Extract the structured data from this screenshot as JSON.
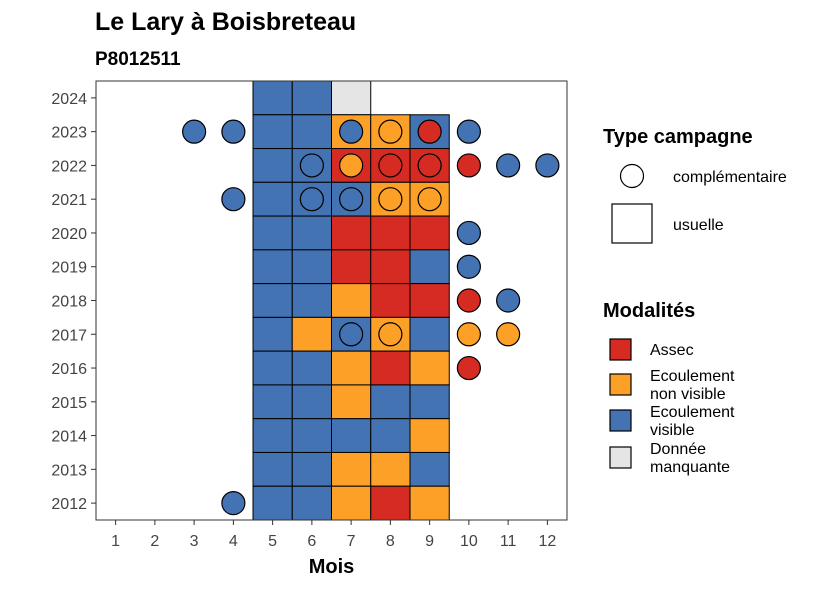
{
  "chart_data": {
    "type": "heatmap",
    "title": "Le Lary à Boisbreteau",
    "subtitle": "P8012511",
    "xlabel": "Mois",
    "ylabel": "",
    "x_ticks": [
      1,
      2,
      3,
      4,
      5,
      6,
      7,
      8,
      9,
      10,
      11,
      12
    ],
    "y_ticks": [
      2012,
      2013,
      2014,
      2015,
      2016,
      2017,
      2018,
      2019,
      2020,
      2021,
      2022,
      2023,
      2024
    ],
    "xlim": [
      0.5,
      12.5
    ],
    "ylim": [
      2011.5,
      2024.5
    ],
    "colors": {
      "Assec": "#d52b23",
      "Ecoulement non visible": "#fda028",
      "Ecoulement visible": "#4373b2",
      "Donnée manquante": "#e5e5e5"
    },
    "legend_type": {
      "title": "Type campagne",
      "items": [
        {
          "shape": "circle",
          "label": "complémentaire"
        },
        {
          "shape": "square",
          "label": "usuelle"
        }
      ]
    },
    "legend_modalites": {
      "title": "Modalités",
      "items": [
        {
          "key": "Assec",
          "lines": [
            "Assec"
          ]
        },
        {
          "key": "Ecoulement non visible",
          "lines": [
            "Ecoulement",
            "non visible"
          ]
        },
        {
          "key": "Ecoulement visible",
          "lines": [
            "Ecoulement",
            "visible"
          ]
        },
        {
          "key": "Donnée manquante",
          "lines": [
            "Donnée",
            "manquante"
          ]
        }
      ]
    },
    "usuelle": [
      {
        "year": 2024,
        "month": 5,
        "status": "Ecoulement visible"
      },
      {
        "year": 2024,
        "month": 6,
        "status": "Ecoulement visible"
      },
      {
        "year": 2024,
        "month": 7,
        "status": "Donnée manquante"
      },
      {
        "year": 2023,
        "month": 5,
        "status": "Ecoulement visible"
      },
      {
        "year": 2023,
        "month": 6,
        "status": "Ecoulement visible"
      },
      {
        "year": 2023,
        "month": 7,
        "status": "Ecoulement non visible"
      },
      {
        "year": 2023,
        "month": 8,
        "status": "Ecoulement non visible"
      },
      {
        "year": 2023,
        "month": 9,
        "status": "Ecoulement visible"
      },
      {
        "year": 2022,
        "month": 5,
        "status": "Ecoulement visible"
      },
      {
        "year": 2022,
        "month": 6,
        "status": "Ecoulement visible"
      },
      {
        "year": 2022,
        "month": 7,
        "status": "Assec"
      },
      {
        "year": 2022,
        "month": 8,
        "status": "Assec"
      },
      {
        "year": 2022,
        "month": 9,
        "status": "Assec"
      },
      {
        "year": 2021,
        "month": 5,
        "status": "Ecoulement visible"
      },
      {
        "year": 2021,
        "month": 6,
        "status": "Ecoulement visible"
      },
      {
        "year": 2021,
        "month": 7,
        "status": "Ecoulement visible"
      },
      {
        "year": 2021,
        "month": 8,
        "status": "Ecoulement non visible"
      },
      {
        "year": 2021,
        "month": 9,
        "status": "Ecoulement non visible"
      },
      {
        "year": 2020,
        "month": 5,
        "status": "Ecoulement visible"
      },
      {
        "year": 2020,
        "month": 6,
        "status": "Ecoulement visible"
      },
      {
        "year": 2020,
        "month": 7,
        "status": "Assec"
      },
      {
        "year": 2020,
        "month": 8,
        "status": "Assec"
      },
      {
        "year": 2020,
        "month": 9,
        "status": "Assec"
      },
      {
        "year": 2019,
        "month": 5,
        "status": "Ecoulement visible"
      },
      {
        "year": 2019,
        "month": 6,
        "status": "Ecoulement visible"
      },
      {
        "year": 2019,
        "month": 7,
        "status": "Assec"
      },
      {
        "year": 2019,
        "month": 8,
        "status": "Assec"
      },
      {
        "year": 2019,
        "month": 9,
        "status": "Ecoulement visible"
      },
      {
        "year": 2018,
        "month": 5,
        "status": "Ecoulement visible"
      },
      {
        "year": 2018,
        "month": 6,
        "status": "Ecoulement visible"
      },
      {
        "year": 2018,
        "month": 7,
        "status": "Ecoulement non visible"
      },
      {
        "year": 2018,
        "month": 8,
        "status": "Assec"
      },
      {
        "year": 2018,
        "month": 9,
        "status": "Assec"
      },
      {
        "year": 2017,
        "month": 5,
        "status": "Ecoulement visible"
      },
      {
        "year": 2017,
        "month": 6,
        "status": "Ecoulement non visible"
      },
      {
        "year": 2017,
        "month": 7,
        "status": "Ecoulement visible"
      },
      {
        "year": 2017,
        "month": 8,
        "status": "Ecoulement non visible"
      },
      {
        "year": 2017,
        "month": 9,
        "status": "Ecoulement visible"
      },
      {
        "year": 2016,
        "month": 5,
        "status": "Ecoulement visible"
      },
      {
        "year": 2016,
        "month": 6,
        "status": "Ecoulement visible"
      },
      {
        "year": 2016,
        "month": 7,
        "status": "Ecoulement non visible"
      },
      {
        "year": 2016,
        "month": 8,
        "status": "Assec"
      },
      {
        "year": 2016,
        "month": 9,
        "status": "Ecoulement non visible"
      },
      {
        "year": 2015,
        "month": 5,
        "status": "Ecoulement visible"
      },
      {
        "year": 2015,
        "month": 6,
        "status": "Ecoulement visible"
      },
      {
        "year": 2015,
        "month": 7,
        "status": "Ecoulement non visible"
      },
      {
        "year": 2015,
        "month": 8,
        "status": "Ecoulement visible"
      },
      {
        "year": 2015,
        "month": 9,
        "status": "Ecoulement visible"
      },
      {
        "year": 2014,
        "month": 5,
        "status": "Ecoulement visible"
      },
      {
        "year": 2014,
        "month": 6,
        "status": "Ecoulement visible"
      },
      {
        "year": 2014,
        "month": 7,
        "status": "Ecoulement visible"
      },
      {
        "year": 2014,
        "month": 8,
        "status": "Ecoulement visible"
      },
      {
        "year": 2014,
        "month": 9,
        "status": "Ecoulement non visible"
      },
      {
        "year": 2013,
        "month": 5,
        "status": "Ecoulement visible"
      },
      {
        "year": 2013,
        "month": 6,
        "status": "Ecoulement visible"
      },
      {
        "year": 2013,
        "month": 7,
        "status": "Ecoulement non visible"
      },
      {
        "year": 2013,
        "month": 8,
        "status": "Ecoulement non visible"
      },
      {
        "year": 2013,
        "month": 9,
        "status": "Ecoulement visible"
      },
      {
        "year": 2012,
        "month": 5,
        "status": "Ecoulement visible"
      },
      {
        "year": 2012,
        "month": 6,
        "status": "Ecoulement visible"
      },
      {
        "year": 2012,
        "month": 7,
        "status": "Ecoulement non visible"
      },
      {
        "year": 2012,
        "month": 8,
        "status": "Assec"
      },
      {
        "year": 2012,
        "month": 9,
        "status": "Ecoulement non visible"
      }
    ],
    "complementaire": [
      {
        "year": 2023,
        "month": 3,
        "status": "Ecoulement visible"
      },
      {
        "year": 2023,
        "month": 4,
        "status": "Ecoulement visible"
      },
      {
        "year": 2023,
        "month": 7,
        "status": "Ecoulement visible"
      },
      {
        "year": 2023,
        "month": 8,
        "status": "Ecoulement non visible"
      },
      {
        "year": 2023,
        "month": 9,
        "status": "Assec"
      },
      {
        "year": 2023,
        "month": 10,
        "status": "Ecoulement visible"
      },
      {
        "year": 2022,
        "month": 6,
        "status": "Ecoulement visible"
      },
      {
        "year": 2022,
        "month": 7,
        "status": "Ecoulement non visible"
      },
      {
        "year": 2022,
        "month": 8,
        "status": "Assec"
      },
      {
        "year": 2022,
        "month": 9,
        "status": "Assec"
      },
      {
        "year": 2022,
        "month": 10,
        "status": "Assec"
      },
      {
        "year": 2022,
        "month": 11,
        "status": "Ecoulement visible"
      },
      {
        "year": 2022,
        "month": 12,
        "status": "Ecoulement visible"
      },
      {
        "year": 2021,
        "month": 4,
        "status": "Ecoulement visible"
      },
      {
        "year": 2021,
        "month": 6,
        "status": "Ecoulement visible"
      },
      {
        "year": 2021,
        "month": 7,
        "status": "Ecoulement visible"
      },
      {
        "year": 2021,
        "month": 8,
        "status": "Ecoulement non visible"
      },
      {
        "year": 2021,
        "month": 9,
        "status": "Ecoulement non visible"
      },
      {
        "year": 2020,
        "month": 10,
        "status": "Ecoulement visible"
      },
      {
        "year": 2019,
        "month": 10,
        "status": "Ecoulement visible"
      },
      {
        "year": 2018,
        "month": 10,
        "status": "Assec"
      },
      {
        "year": 2018,
        "month": 11,
        "status": "Ecoulement visible"
      },
      {
        "year": 2017,
        "month": 7,
        "status": "Ecoulement visible"
      },
      {
        "year": 2017,
        "month": 8,
        "status": "Ecoulement non visible"
      },
      {
        "year": 2017,
        "month": 10,
        "status": "Ecoulement non visible"
      },
      {
        "year": 2017,
        "month": 11,
        "status": "Ecoulement non visible"
      },
      {
        "year": 2016,
        "month": 10,
        "status": "Assec"
      },
      {
        "year": 2012,
        "month": 4,
        "status": "Ecoulement visible"
      }
    ]
  }
}
